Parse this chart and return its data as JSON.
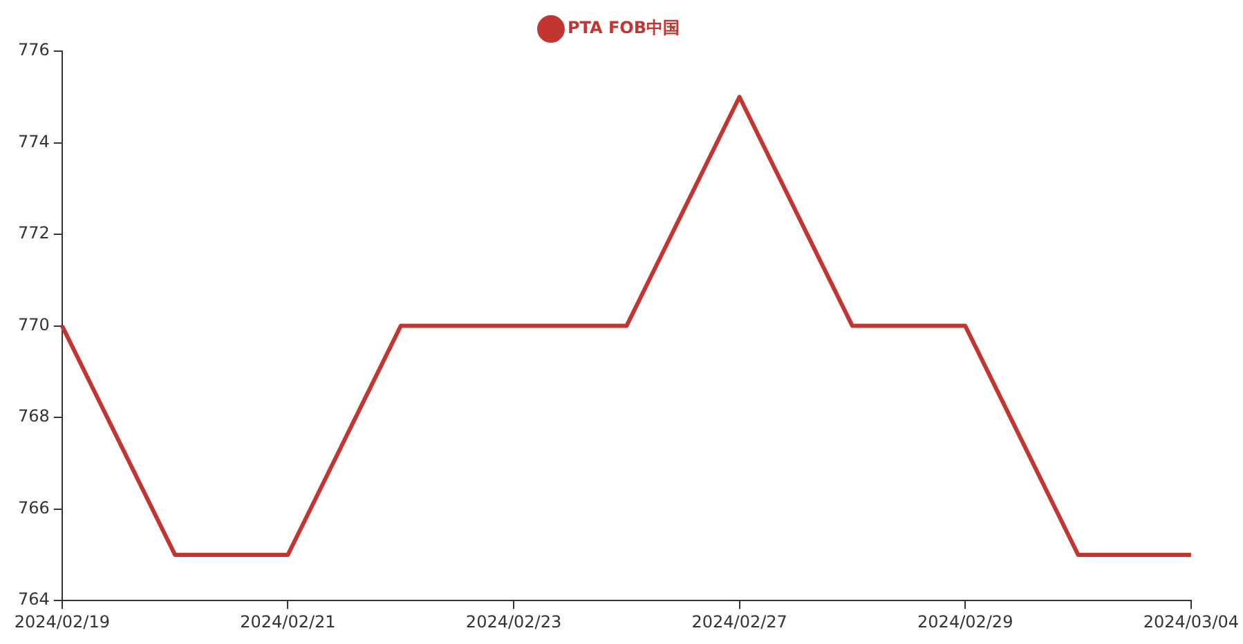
{
  "chart_data": {
    "type": "line",
    "categories": [
      "2024/02/19",
      null,
      "2024/02/21",
      null,
      "2024/02/23",
      null,
      "2024/02/27",
      null,
      "2024/02/29",
      null,
      "2024/03/04"
    ],
    "series": [
      {
        "name": "PTA FOB中国",
        "color": "#c23531",
        "values": [
          770,
          765,
          765,
          770,
          770,
          770,
          775,
          770,
          770,
          765,
          765
        ]
      }
    ],
    "ylim": [
      764,
      776
    ],
    "yticks": [
      764,
      766,
      768,
      770,
      772,
      774,
      776
    ],
    "grid": false,
    "legend": "top"
  }
}
